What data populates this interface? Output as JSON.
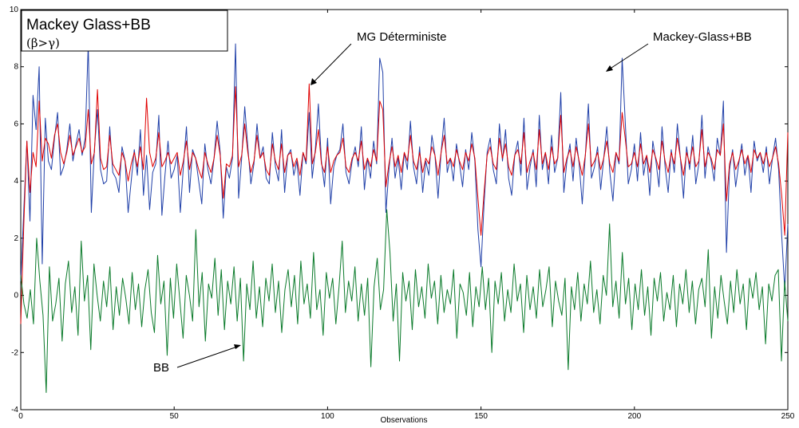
{
  "chart_data": {
    "type": "line",
    "title": "",
    "xlabel": "Observations",
    "ylabel": "",
    "xlim": [
      0,
      250
    ],
    "ylim": [
      -4,
      10
    ],
    "xticks": [
      0,
      50,
      100,
      150,
      200,
      250
    ],
    "yticks": [
      -4,
      -2,
      0,
      2,
      4,
      6,
      8,
      10
    ],
    "grid": false,
    "legend_box": {
      "title": "Mackey Glass+BB",
      "subtitle": "(β>γ)",
      "placement": "top-left"
    },
    "annotations": [
      {
        "text": "MG Déterministe",
        "x": 94,
        "y": 7.4
      },
      {
        "text": "Mackey-Glass+BB",
        "x": 190,
        "y": 7.9
      },
      {
        "text": "BB",
        "x": 72,
        "y": -1.9
      }
    ],
    "series": [
      {
        "color": "#1f3fa8",
        "values": [
          0.5,
          3.0,
          5.4,
          2.6,
          7.0,
          5.8,
          8.0,
          1.1,
          6.2,
          4.7,
          4.4,
          5.5,
          6.4,
          4.2,
          4.5,
          5.1,
          6.0,
          4.7,
          5.3,
          5.8,
          4.9,
          5.5,
          8.8,
          2.9,
          5.1,
          6.5,
          4.4,
          3.9,
          4.0,
          5.9,
          4.3,
          4.1,
          3.6,
          5.2,
          4.7,
          2.9,
          4.0,
          5.1,
          4.2,
          5.8,
          3.5,
          4.9,
          3.0,
          4.3,
          4.6,
          6.3,
          2.8,
          4.2,
          5.4,
          4.1,
          4.4,
          4.9,
          2.9,
          4.5,
          5.9,
          3.6,
          5.1,
          4.8,
          4.0,
          3.2,
          5.3,
          4.4,
          3.9,
          4.8,
          6.1,
          5.0,
          2.7,
          4.5,
          4.1,
          4.8,
          8.8,
          3.4,
          4.8,
          6.6,
          5.2,
          3.9,
          4.6,
          6.0,
          4.8,
          5.2,
          4.1,
          3.9,
          5.7,
          4.5,
          4.0,
          5.8,
          3.6,
          4.9,
          5.1,
          4.2,
          4.7,
          3.5,
          5.0,
          4.6,
          6.4,
          4.1,
          5.1,
          6.7,
          4.7,
          3.8,
          5.5,
          3.2,
          4.5,
          4.9,
          5.1,
          6.0,
          4.3,
          3.9,
          4.7,
          5.2,
          4.5,
          5.9,
          3.7,
          4.8,
          4.1,
          5.4,
          4.6,
          8.3,
          7.8,
          2.9,
          4.4,
          5.5,
          4.1,
          4.8,
          3.7,
          5.0,
          4.4,
          6.1,
          4.5,
          3.9,
          5.2,
          3.6,
          4.7,
          4.2,
          5.6,
          4.9,
          3.4,
          5.0,
          6.2,
          4.3,
          4.8,
          4.0,
          5.3,
          4.6,
          3.8,
          5.1,
          4.4,
          5.7,
          4.7,
          2.3,
          1.0,
          3.2,
          5.0,
          5.5,
          4.4,
          3.9,
          6.0,
          4.7,
          5.8,
          4.1,
          3.5,
          4.9,
          5.4,
          4.2,
          6.2,
          3.7,
          4.5,
          5.1,
          3.8,
          6.3,
          4.4,
          5.0,
          3.9,
          5.6,
          4.3,
          4.8,
          7.1,
          3.6,
          4.7,
          5.3,
          4.0,
          5.5,
          4.6,
          3.2,
          4.9,
          6.7,
          4.1,
          4.5,
          5.2,
          3.7,
          4.8,
          5.9,
          4.3,
          3.3,
          5.0,
          4.6,
          8.3,
          6.1,
          3.9,
          4.4,
          5.3,
          4.0,
          5.7,
          4.2,
          4.9,
          3.5,
          5.4,
          4.7,
          3.8,
          5.9,
          4.5,
          3.6,
          5.1,
          4.3,
          6.0,
          4.8,
          3.4,
          5.2,
          4.4,
          5.6,
          3.9,
          4.6,
          6.3,
          4.1,
          5.2,
          4.7,
          4.0,
          5.5,
          4.9,
          6.8,
          1.5,
          4.4,
          5.1,
          3.8,
          4.6,
          5.3,
          4.2,
          4.9,
          3.6,
          5.4,
          4.7,
          5.0,
          4.3,
          5.2,
          3.9,
          4.8,
          5.5,
          4.4,
          2.1,
          0.2,
          2.5
        ]
      },
      {
        "color": "#e00000",
        "values": [
          -1.0,
          2.5,
          5.4,
          3.6,
          5.0,
          4.5,
          6.8,
          4.7,
          5.5,
          5.3,
          4.8,
          5.6,
          6.0,
          5.0,
          4.6,
          5.0,
          5.6,
          4.9,
          5.2,
          5.5,
          5.0,
          5.2,
          6.5,
          4.6,
          5.0,
          7.2,
          4.8,
          4.4,
          4.5,
          5.6,
          4.6,
          4.4,
          4.2,
          5.0,
          4.7,
          4.0,
          4.6,
          5.0,
          4.5,
          5.2,
          4.4,
          6.9,
          5.0,
          4.5,
          4.8,
          5.7,
          4.5,
          4.7,
          5.0,
          4.6,
          4.8,
          5.0,
          4.2,
          4.7,
          5.4,
          4.4,
          5.0,
          4.8,
          4.4,
          4.1,
          5.0,
          4.6,
          4.3,
          4.8,
          5.6,
          4.9,
          3.4,
          4.6,
          4.5,
          4.9,
          7.3,
          4.5,
          4.9,
          6.0,
          5.0,
          4.3,
          4.7,
          5.6,
          4.8,
          5.0,
          4.4,
          4.2,
          5.3,
          4.7,
          4.4,
          5.3,
          4.3,
          4.9,
          5.0,
          4.5,
          4.8,
          4.2,
          5.0,
          4.7,
          7.4,
          4.6,
          5.0,
          5.8,
          4.6,
          4.3,
          5.2,
          4.3,
          4.7,
          4.9,
          5.0,
          5.5,
          4.5,
          4.3,
          4.8,
          5.0,
          4.7,
          5.4,
          4.4,
          4.8,
          4.5,
          5.1,
          4.7,
          6.8,
          6.5,
          3.8,
          4.6,
          5.2,
          4.5,
          4.9,
          4.3,
          5.0,
          4.7,
          5.6,
          4.7,
          4.4,
          5.0,
          4.3,
          4.8,
          4.6,
          5.2,
          4.9,
          4.2,
          5.0,
          5.6,
          4.6,
          4.8,
          4.5,
          5.1,
          4.7,
          4.4,
          5.0,
          4.7,
          5.3,
          4.8,
          3.4,
          2.1,
          3.6,
          4.9,
          5.2,
          4.6,
          4.4,
          5.5,
          4.8,
          5.3,
          4.5,
          4.2,
          4.9,
          5.1,
          4.6,
          5.7,
          4.3,
          4.7,
          5.0,
          4.4,
          5.8,
          4.6,
          5.0,
          4.4,
          5.2,
          4.6,
          4.8,
          6.3,
          4.3,
          4.8,
          5.1,
          4.5,
          5.2,
          4.7,
          4.2,
          4.9,
          6.0,
          4.5,
          4.7,
          5.0,
          4.4,
          4.8,
          5.4,
          4.6,
          4.3,
          5.0,
          4.7,
          6.4,
          5.5,
          4.5,
          4.6,
          5.0,
          4.5,
          5.3,
          4.6,
          4.9,
          4.3,
          5.1,
          4.8,
          4.4,
          5.4,
          4.7,
          4.3,
          5.0,
          4.6,
          5.5,
          4.8,
          4.2,
          5.0,
          4.6,
          5.2,
          4.5,
          4.7,
          5.8,
          4.5,
          5.0,
          4.8,
          4.4,
          5.1,
          4.9,
          6.0,
          3.3,
          4.6,
          5.0,
          4.4,
          4.7,
          5.1,
          4.6,
          4.9,
          4.3,
          5.1,
          4.8,
          5.0,
          4.6,
          5.0,
          4.5,
          4.8,
          5.2,
          4.6,
          3.5,
          2.1,
          5.7
        ]
      },
      {
        "color": "#0a7a2a",
        "values": [
          0.7,
          -0.3,
          -0.8,
          0.2,
          -1.0,
          2.0,
          0.5,
          -0.7,
          -3.4,
          1.0,
          -0.9,
          -0.3,
          0.6,
          -1.6,
          0.4,
          1.2,
          -0.6,
          0.3,
          -1.4,
          1.9,
          -0.2,
          0.7,
          -1.9,
          1.1,
          0.0,
          -0.9,
          0.5,
          -0.4,
          1.0,
          -1.2,
          0.3,
          -0.7,
          0.6,
          -0.1,
          -1.0,
          0.8,
          -0.5,
          0.4,
          -1.1,
          0.2,
          0.9,
          -0.6,
          -1.3,
          1.4,
          -0.3,
          0.5,
          -2.1,
          0.6,
          -0.8,
          1.1,
          -0.2,
          -1.5,
          0.7,
          0.0,
          -0.9,
          2.3,
          -0.4,
          0.8,
          -1.6,
          0.4,
          -0.1,
          1.3,
          -0.7,
          0.9,
          -1.2,
          0.5,
          -0.3,
          1.0,
          -0.9,
          0.6,
          -2.3,
          0.4,
          -0.5,
          1.2,
          -0.8,
          0.3,
          -1.1,
          0.6,
          -0.2,
          1.1,
          -0.6,
          0.5,
          -1.3,
          0.2,
          0.9,
          -0.4,
          0.7,
          -1.0,
          1.2,
          -0.3,
          0.4,
          -0.8,
          1.5,
          -0.5,
          0.2,
          -1.4,
          0.8,
          -0.1,
          0.6,
          -1.0,
          0.3,
          1.9,
          -0.6,
          0.5,
          -0.2,
          1.0,
          -0.9,
          0.4,
          -0.7,
          0.6,
          -2.5,
          0.3,
          1.3,
          -0.5,
          0.2,
          3.0,
          1.5,
          -0.9,
          0.4,
          -2.3,
          0.8,
          -0.2,
          0.5,
          -1.2,
          0.9,
          -0.4,
          0.3,
          -0.8,
          1.1,
          -0.1,
          0.5,
          -1.0,
          0.7,
          -0.6,
          0.2,
          -0.3,
          0.9,
          -1.5,
          0.4,
          0.1,
          -0.7,
          0.8,
          -1.1,
          0.3,
          -0.4,
          1.0,
          -0.5,
          0.6,
          -2.0,
          0.5,
          -0.3,
          0.8,
          -0.9,
          0.2,
          -0.6,
          1.1,
          -0.2,
          0.4,
          -1.3,
          0.7,
          -0.5,
          0.3,
          -0.8,
          0.9,
          -0.4,
          0.2,
          1.0,
          -1.1,
          0.5,
          -0.2,
          -0.7,
          0.6,
          -2.6,
          0.3,
          -0.5,
          0.8,
          -0.9,
          0.4,
          -0.3,
          1.2,
          -0.6,
          0.2,
          -1.0,
          0.7,
          0.0,
          2.5,
          -0.4,
          0.5,
          -0.8,
          1.5,
          -0.3,
          0.6,
          -1.2,
          0.4,
          -0.5,
          0.9,
          -0.7,
          0.3,
          -1.4,
          0.6,
          -0.2,
          0.8,
          -0.9,
          0.1,
          -0.5,
          0.7,
          -1.1,
          0.4,
          -0.3,
          0.9,
          -0.6,
          0.5,
          -1.0,
          0.2,
          0.6,
          -0.4,
          1.6,
          -1.5,
          0.3,
          -0.8,
          0.7,
          -0.2,
          -1.0,
          0.5,
          -0.6,
          0.9,
          -0.3,
          0.4,
          -1.2,
          0.6,
          -0.1,
          0.8,
          -0.5,
          0.3,
          -1.7,
          0.4,
          -0.2,
          0.7,
          0.9,
          -2.3,
          0.5,
          -0.9
        ]
      }
    ]
  }
}
